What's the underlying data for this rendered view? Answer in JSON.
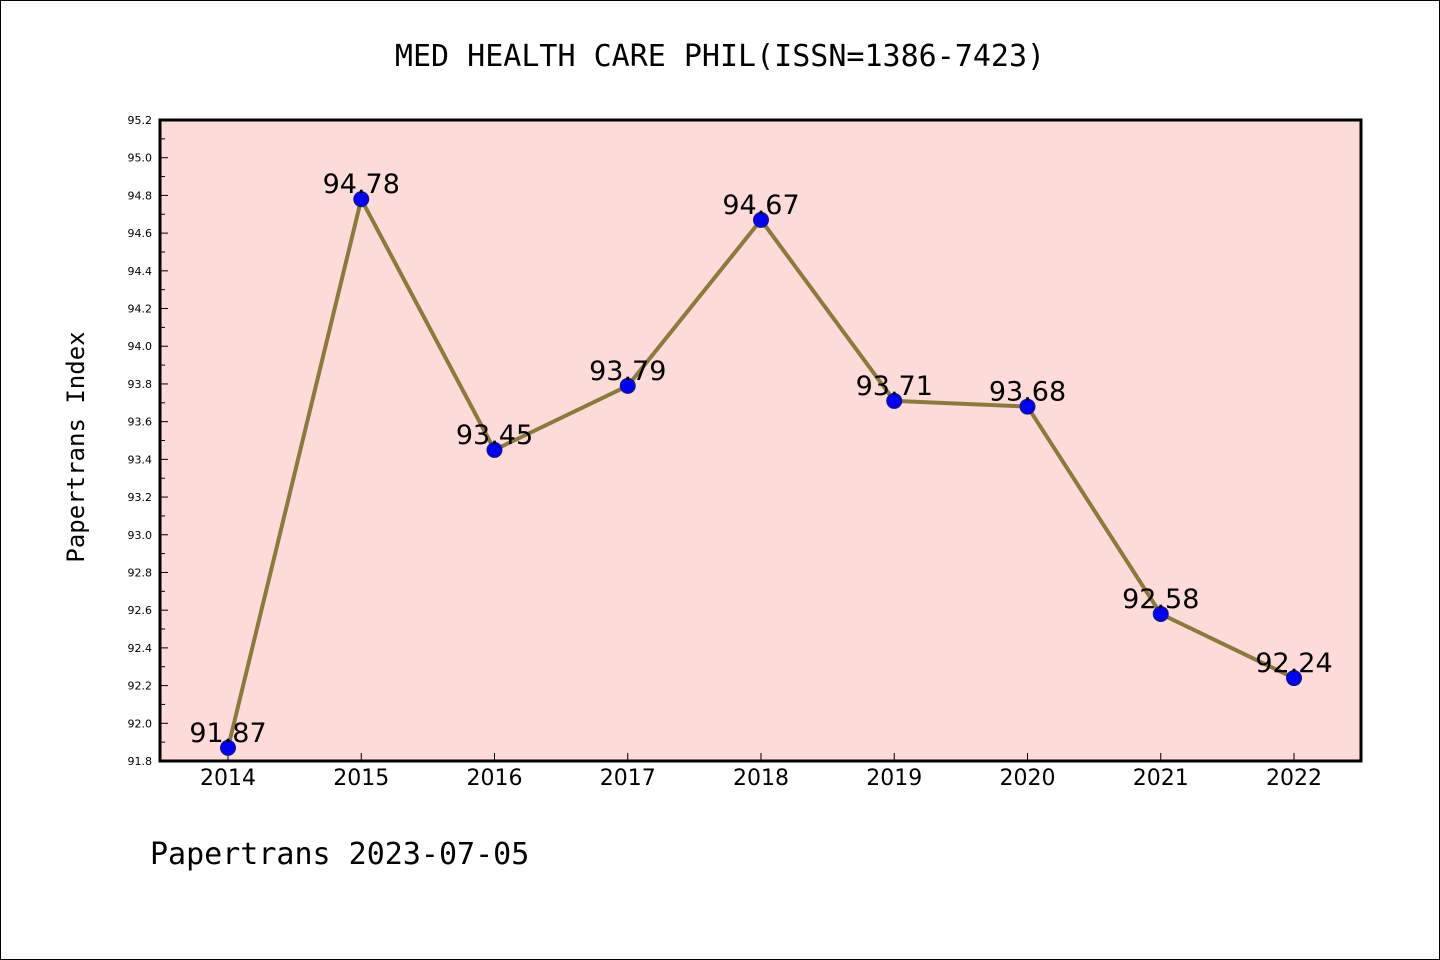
{
  "footer_text": "Papertrans 2023-07-05",
  "colors": {
    "plot_background": "#fddbd9",
    "line": "#8b7b3a",
    "marker": "#0000ff",
    "marker_edge": "#1a1a6e"
  },
  "chart_data": {
    "type": "line",
    "title": "MED HEALTH CARE PHIL(ISSN=1386-7423)",
    "xlabel": "",
    "ylabel": "Papertrans Index",
    "categories": [
      "2014",
      "2015",
      "2016",
      "2017",
      "2018",
      "2019",
      "2020",
      "2021",
      "2022"
    ],
    "series": [
      {
        "values": [
          91.87,
          94.78,
          93.45,
          93.79,
          94.67,
          93.71,
          93.68,
          92.58,
          92.24
        ]
      }
    ],
    "data_labels": [
      "91.87",
      "94.78",
      "93.45",
      "93.79",
      "94.67",
      "93.71",
      "93.68",
      "92.58",
      "92.24"
    ],
    "ylim": [
      91.8,
      95.2
    ],
    "y_ticks": [
      "91.8",
      "92.0",
      "92.2",
      "92.4",
      "92.6",
      "92.8",
      "93.0",
      "93.2",
      "93.4",
      "93.6",
      "93.8",
      "94.0",
      "94.2",
      "94.4",
      "94.6",
      "94.8",
      "95.0",
      "95.2"
    ],
    "grid": false,
    "legend": "none"
  }
}
